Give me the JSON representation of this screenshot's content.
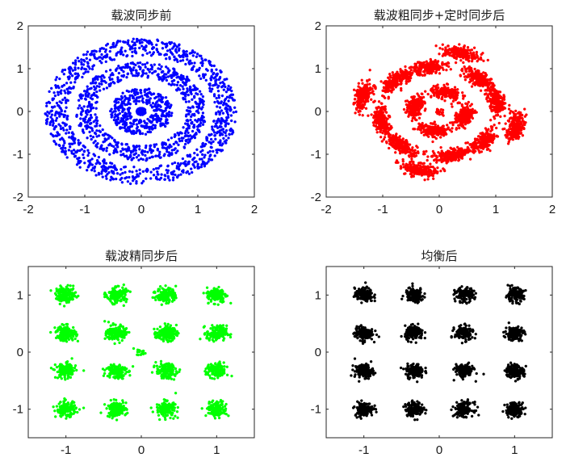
{
  "chart_data": [
    {
      "type": "scatter",
      "title": "载波同步前",
      "color": "#0000ff",
      "xlim": [
        -2,
        2
      ],
      "ylim": [
        -2,
        2
      ],
      "xticks": [
        "-2",
        "-1",
        "0",
        "1",
        "2"
      ],
      "yticks": [
        "-2",
        "-1",
        "0",
        "1",
        "2"
      ],
      "pattern": "rings",
      "rings": [
        {
          "inner": 0.0,
          "outer": 0.08
        },
        {
          "inner": 0.2,
          "outer": 0.55
        },
        {
          "inner": 0.8,
          "outer": 1.15
        },
        {
          "inner": 1.3,
          "outer": 1.7
        }
      ]
    },
    {
      "type": "scatter",
      "title": "载波粗同步+定时同步后",
      "color": "#ff0000",
      "xlim": [
        -2,
        2
      ],
      "ylim": [
        -2,
        2
      ],
      "xticks": [
        "-2",
        "-1",
        "0",
        "1",
        "2"
      ],
      "yticks": [
        "-2",
        "-1",
        "0",
        "1",
        "2"
      ],
      "pattern": "rotated-16qam",
      "rotation_deg": 30,
      "levels": [
        -1.0,
        -0.33,
        0.33,
        1.0
      ],
      "spread": 0.13
    },
    {
      "type": "scatter",
      "title": "载波精同步后",
      "color": "#00ff00",
      "xlim": [
        -1.5,
        1.5
      ],
      "ylim": [
        -1.5,
        1.5
      ],
      "xticks": [
        "-1",
        "0",
        "1"
      ],
      "yticks": [
        "-1",
        "0",
        "1"
      ],
      "pattern": "16qam",
      "levels": [
        -1.0,
        -0.33,
        0.33,
        1.0
      ],
      "spread": 0.12,
      "center_point": [
        0,
        0
      ]
    },
    {
      "type": "scatter",
      "title": "均衡后",
      "color": "#000000",
      "xlim": [
        -1.5,
        1.5
      ],
      "ylim": [
        -1.5,
        1.5
      ],
      "xticks": [
        "-1",
        "0",
        "1"
      ],
      "yticks": [
        "-1",
        "0",
        "1"
      ],
      "pattern": "16qam",
      "levels": [
        -1.0,
        -0.33,
        0.33,
        1.0
      ],
      "spread": 0.11
    }
  ]
}
